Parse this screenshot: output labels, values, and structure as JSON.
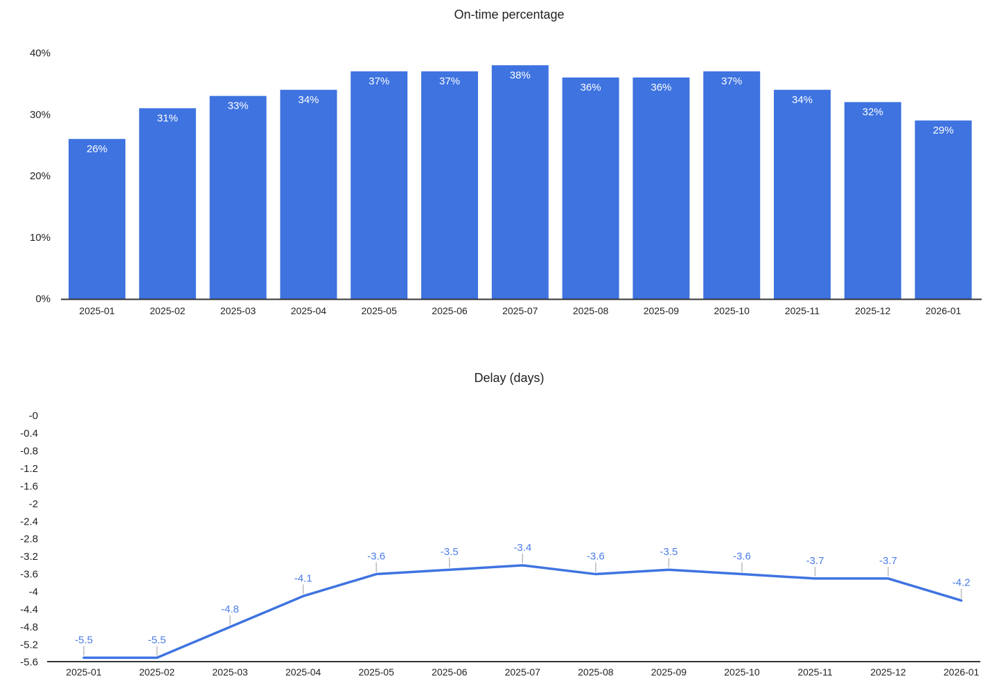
{
  "colors": {
    "series": "#3e73e0",
    "annotation_text": "#4a7ce6",
    "stem": "#bbbbbb",
    "axis_line": "#333333",
    "axis_text": "#222222",
    "title_text": "#212121",
    "bar_label_text": "#ffffff"
  },
  "chart_data": [
    {
      "type": "bar",
      "title": "On-time percentage",
      "categories": [
        "2025-01",
        "2025-02",
        "2025-03",
        "2025-04",
        "2025-05",
        "2025-06",
        "2025-07",
        "2025-08",
        "2025-09",
        "2025-10",
        "2025-11",
        "2025-12",
        "2026-01"
      ],
      "values": [
        26,
        31,
        33,
        34,
        37,
        37,
        38,
        36,
        36,
        37,
        34,
        32,
        29
      ],
      "bar_labels": [
        "26%",
        "31%",
        "33%",
        "34%",
        "37%",
        "37%",
        "38%",
        "36%",
        "36%",
        "37%",
        "34%",
        "32%",
        "29%"
      ],
      "xlabel": "",
      "ylabel": "",
      "ylim": [
        0,
        40
      ],
      "y_ticks": {
        "values": [
          0,
          10,
          20,
          30,
          40
        ],
        "labels": [
          "0%",
          "10%",
          "20%",
          "30%",
          "40%"
        ]
      },
      "grid": false,
      "legend": "none",
      "series_color": "#3e73e0",
      "label_position": "inside-top",
      "label_color": "#ffffff"
    },
    {
      "type": "line",
      "title": "Delay (days)",
      "categories": [
        "2025-01",
        "2025-02",
        "2025-03",
        "2025-04",
        "2025-05",
        "2025-06",
        "2025-07",
        "2025-08",
        "2025-09",
        "2025-10",
        "2025-11",
        "2025-12",
        "2026-01"
      ],
      "values": [
        -5.5,
        -5.5,
        -4.8,
        -4.1,
        -3.6,
        -3.5,
        -3.4,
        -3.6,
        -3.5,
        -3.6,
        -3.7,
        -3.7,
        -4.2
      ],
      "point_labels": [
        "-5.5",
        "-5.5",
        "-4.8",
        "-4.1",
        "-3.6",
        "-3.5",
        "-3.4",
        "-3.6",
        "-3.5",
        "-3.6",
        "-3.7",
        "-3.7",
        "-4.2"
      ],
      "xlabel": "",
      "ylabel": "",
      "ylim": [
        -5.6,
        0
      ],
      "y_ticks": {
        "values": [
          0,
          -0.4,
          -0.8,
          -1.2,
          -1.6,
          -2,
          -2.4,
          -2.8,
          -3.2,
          -3.6,
          -4,
          -4.4,
          -4.8,
          -5.2,
          -5.6
        ],
        "labels": [
          "-0",
          "-0.4",
          "-0.8",
          "-1.2",
          "-1.6",
          "-2",
          "-2.4",
          "-2.8",
          "-3.2",
          "-3.6",
          "-4",
          "-4.4",
          "-4.8",
          "-5.2",
          "-5.6"
        ]
      },
      "grid": false,
      "legend": "none",
      "series_color": "#3e73e0",
      "annotation_color": "#4a7ce6",
      "stem_color": "#bbbbbb"
    }
  ]
}
